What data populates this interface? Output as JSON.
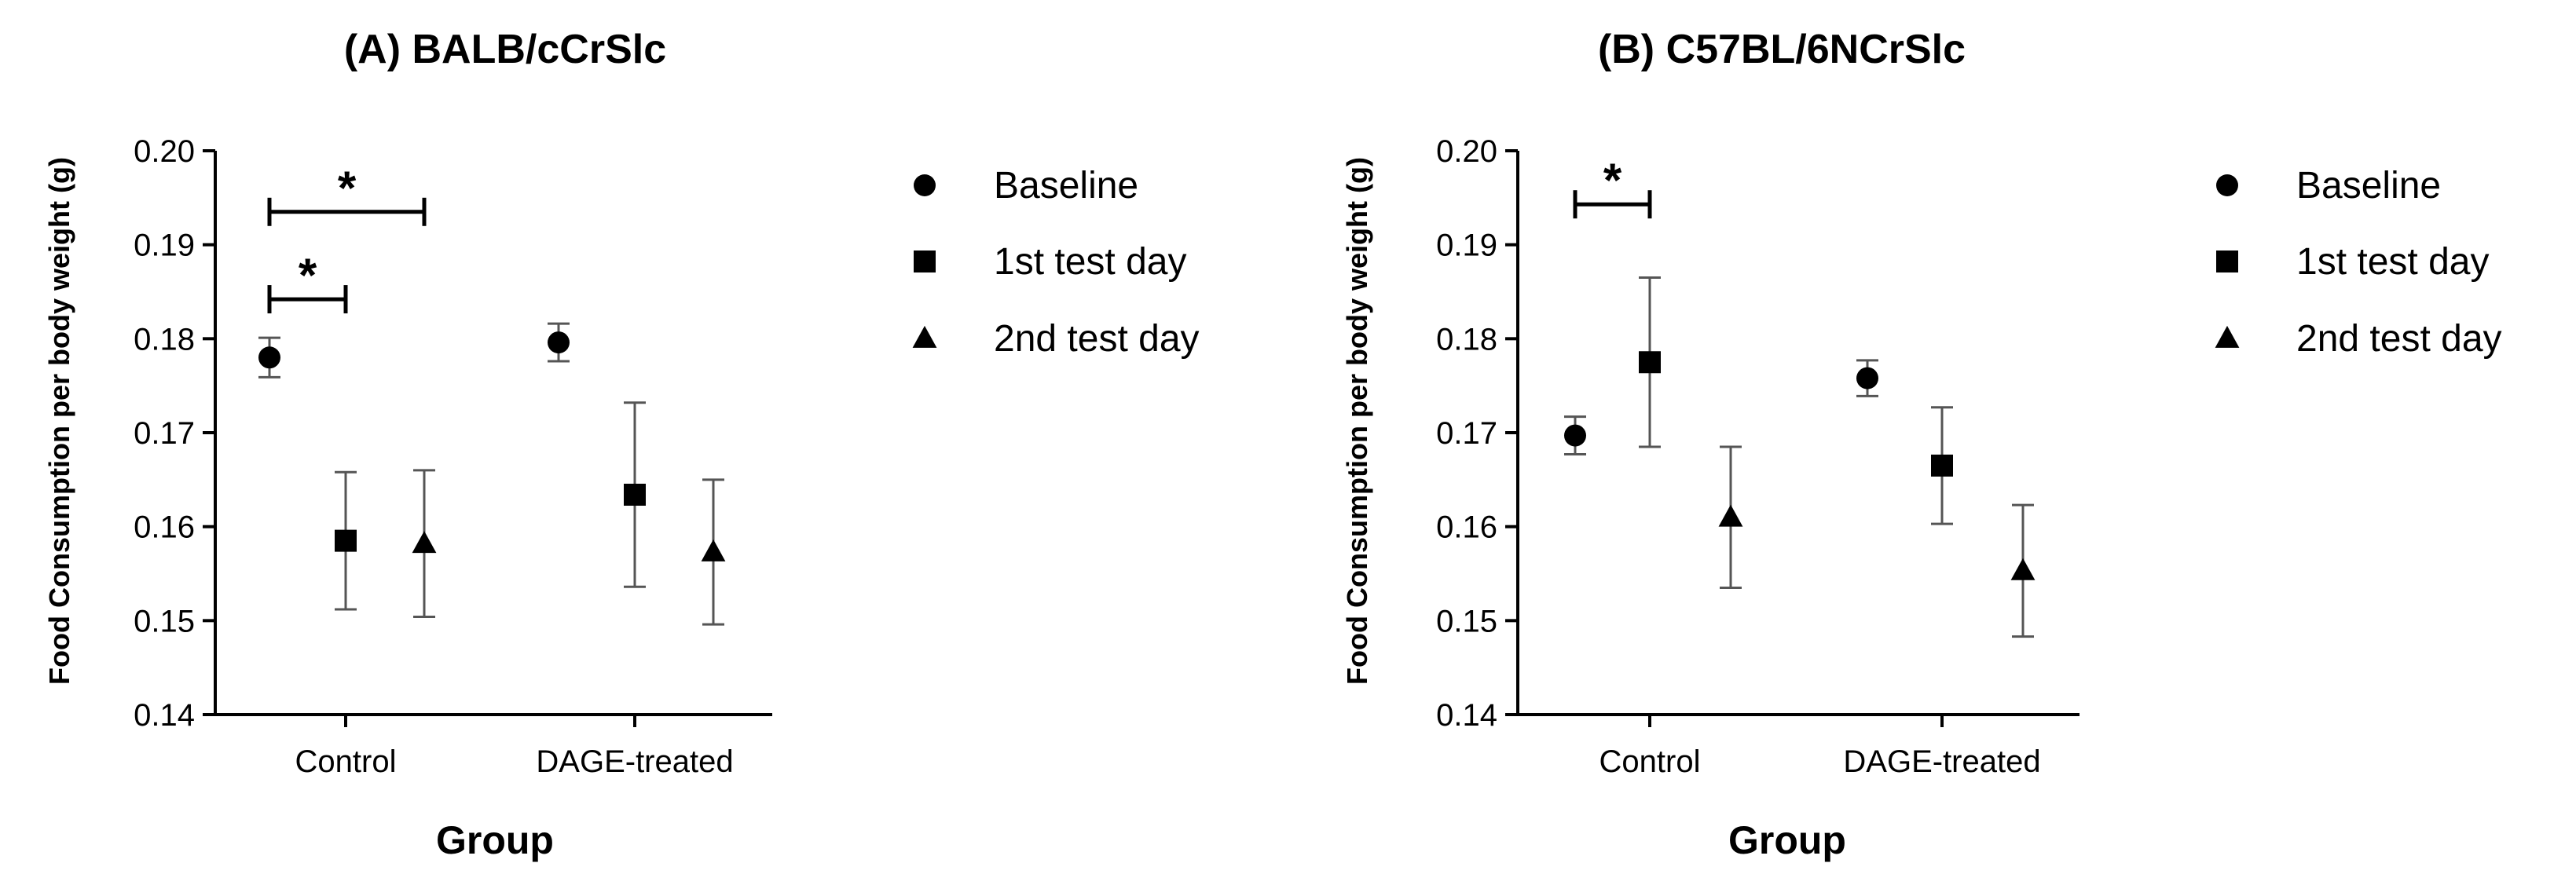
{
  "chart_data": [
    {
      "type": "scatter",
      "title": "(A) BALB/cCrSlc",
      "xlabel": "Group",
      "ylabel": "Food Consumption per body weight (g)",
      "ylim": [
        0.14,
        0.2
      ],
      "yticks": [
        0.14,
        0.15,
        0.16,
        0.17,
        0.18,
        0.19,
        0.2
      ],
      "categories": [
        "Control",
        "DAGE-treated"
      ],
      "series": [
        {
          "name": "Baseline",
          "marker": "circle",
          "values": [
            0.178,
            0.1796
          ],
          "errors": [
            0.0021,
            0.002
          ]
        },
        {
          "name": "1st test day",
          "marker": "square",
          "values": [
            0.1585,
            0.1634
          ],
          "errors": [
            0.0073,
            0.0098
          ]
        },
        {
          "name": "2nd test day",
          "marker": "triangle",
          "values": [
            0.1582,
            0.1573
          ],
          "errors": [
            0.0078,
            0.0077
          ]
        }
      ],
      "significance": [
        {
          "category": "Control",
          "from": "Baseline",
          "to": "2nd test day",
          "label": "*",
          "y": 0.1935
        },
        {
          "category": "Control",
          "from": "Baseline",
          "to": "1st test day",
          "label": "*",
          "y": 0.1842
        }
      ],
      "legend": {
        "position": "right",
        "entries": [
          "Baseline",
          "1st test day",
          "2nd test day"
        ]
      }
    },
    {
      "type": "scatter",
      "title": "(B) C57BL/6NCrSlc",
      "xlabel": "Group",
      "ylabel": "Food Consumption per body weight (g)",
      "ylim": [
        0.14,
        0.2
      ],
      "yticks": [
        0.14,
        0.15,
        0.16,
        0.17,
        0.18,
        0.19,
        0.2
      ],
      "categories": [
        "Control",
        "DAGE-treated"
      ],
      "series": [
        {
          "name": "Baseline",
          "marker": "circle",
          "values": [
            0.1697,
            0.1758
          ],
          "errors": [
            0.002,
            0.0019
          ]
        },
        {
          "name": "1st test day",
          "marker": "square",
          "values": [
            0.1775,
            0.1665
          ],
          "errors": [
            0.009,
            0.0062
          ]
        },
        {
          "name": "2nd test day",
          "marker": "triangle",
          "values": [
            0.161,
            0.1553
          ],
          "errors": [
            0.0075,
            0.007
          ]
        }
      ],
      "significance": [
        {
          "category": "Control",
          "from": "Baseline",
          "to": "1st test day",
          "label": "*",
          "y": 0.1943
        }
      ],
      "legend": {
        "position": "right",
        "entries": [
          "Baseline",
          "1st test day",
          "2nd test day"
        ]
      }
    }
  ]
}
